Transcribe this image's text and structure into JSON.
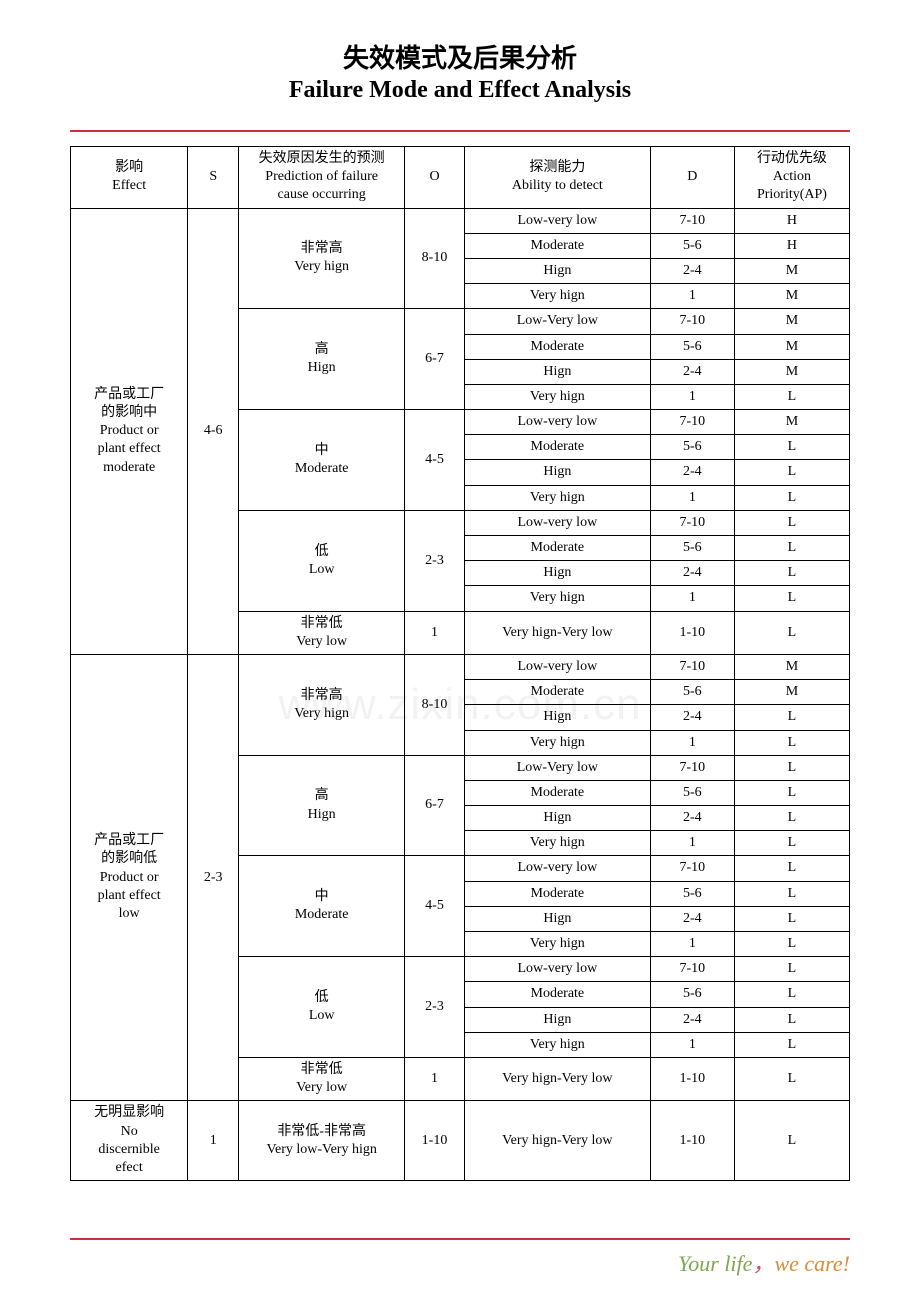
{
  "titles": {
    "cn": "失效模式及后果分析",
    "en": "Failure Mode and Effect Analysis"
  },
  "watermark": "www.zixin.com.cn",
  "footer": {
    "part1": "Your life",
    "comma": "，",
    "part2": "we care!"
  },
  "colors": {
    "rule": "#c8323a"
  },
  "headers": {
    "effect_cn": "影响",
    "effect_en": "Effect",
    "s": "S",
    "pred_cn": "失效原因发生的预测",
    "pred_en1": "Prediction of failure",
    "pred_en2": "cause occurring",
    "o": "O",
    "detect_cn": "探测能力",
    "detect_en": "Ability to detect",
    "d": "D",
    "ap_cn": "行动优先级",
    "ap_en1": "Action",
    "ap_en2": "Priority(AP)"
  },
  "groups": [
    {
      "effect_cn1": "产品或工厂",
      "effect_cn2": "的影响中",
      "effect_en1": "Product or",
      "effect_en2": "plant effect",
      "effect_en3": "moderate",
      "s": "4-6",
      "preds": [
        {
          "label_cn": "非常高",
          "label_en": "Very hign",
          "o": "8-10",
          "rows": [
            {
              "detect": "Low-very low",
              "d": "7-10",
              "ap": "H"
            },
            {
              "detect": "Moderate",
              "d": "5-6",
              "ap": "H"
            },
            {
              "detect": "Hign",
              "d": "2-4",
              "ap": "M"
            },
            {
              "detect": "Very hign",
              "d": "1",
              "ap": "M"
            }
          ]
        },
        {
          "label_cn": "高",
          "label_en": "Hign",
          "o": "6-7",
          "rows": [
            {
              "detect": "Low-Very low",
              "d": "7-10",
              "ap": "M"
            },
            {
              "detect": "Moderate",
              "d": "5-6",
              "ap": "M"
            },
            {
              "detect": "Hign",
              "d": "2-4",
              "ap": "M"
            },
            {
              "detect": "Very hign",
              "d": "1",
              "ap": "L"
            }
          ]
        },
        {
          "label_cn": "中",
          "label_en": "Moderate",
          "o": "4-5",
          "rows": [
            {
              "detect": "Low-very low",
              "d": "7-10",
              "ap": "M"
            },
            {
              "detect": "Moderate",
              "d": "5-6",
              "ap": "L"
            },
            {
              "detect": "Hign",
              "d": "2-4",
              "ap": "L"
            },
            {
              "detect": "Very hign",
              "d": "1",
              "ap": "L"
            }
          ]
        },
        {
          "label_cn": "低",
          "label_en": "Low",
          "o": "2-3",
          "rows": [
            {
              "detect": "Low-very low",
              "d": "7-10",
              "ap": "L"
            },
            {
              "detect": "Moderate",
              "d": "5-6",
              "ap": "L"
            },
            {
              "detect": "Hign",
              "d": "2-4",
              "ap": "L"
            },
            {
              "detect": "Very hign",
              "d": "1",
              "ap": "L"
            }
          ]
        },
        {
          "label_cn": "非常低",
          "label_en": "Very low",
          "o": "1",
          "rows": [
            {
              "detect": "Very hign-Very low",
              "d": "1-10",
              "ap": "L"
            }
          ]
        }
      ]
    },
    {
      "effect_cn1": "产品或工厂",
      "effect_cn2": "的影响低",
      "effect_en1": "Product or",
      "effect_en2": "plant effect",
      "effect_en3": "low",
      "s": "2-3",
      "preds": [
        {
          "label_cn": "非常高",
          "label_en": "Very hign",
          "o": "8-10",
          "rows": [
            {
              "detect": "Low-very low",
              "d": "7-10",
              "ap": "M"
            },
            {
              "detect": "Moderate",
              "d": "5-6",
              "ap": "M"
            },
            {
              "detect": "Hign",
              "d": "2-4",
              "ap": "L"
            },
            {
              "detect": "Very hign",
              "d": "1",
              "ap": "L"
            }
          ]
        },
        {
          "label_cn": "高",
          "label_en": "Hign",
          "o": "6-7",
          "rows": [
            {
              "detect": "Low-Very low",
              "d": "7-10",
              "ap": "L"
            },
            {
              "detect": "Moderate",
              "d": "5-6",
              "ap": "L"
            },
            {
              "detect": "Hign",
              "d": "2-4",
              "ap": "L"
            },
            {
              "detect": "Very hign",
              "d": "1",
              "ap": "L"
            }
          ]
        },
        {
          "label_cn": "中",
          "label_en": "Moderate",
          "o": "4-5",
          "rows": [
            {
              "detect": "Low-very low",
              "d": "7-10",
              "ap": "L"
            },
            {
              "detect": "Moderate",
              "d": "5-6",
              "ap": "L"
            },
            {
              "detect": "Hign",
              "d": "2-4",
              "ap": "L"
            },
            {
              "detect": "Very hign",
              "d": "1",
              "ap": "L"
            }
          ]
        },
        {
          "label_cn": "低",
          "label_en": "Low",
          "o": "2-3",
          "rows": [
            {
              "detect": "Low-very low",
              "d": "7-10",
              "ap": "L"
            },
            {
              "detect": "Moderate",
              "d": "5-6",
              "ap": "L"
            },
            {
              "detect": "Hign",
              "d": "2-4",
              "ap": "L"
            },
            {
              "detect": "Very hign",
              "d": "1",
              "ap": "L"
            }
          ]
        },
        {
          "label_cn": "非常低",
          "label_en": "Very low",
          "o": "1",
          "rows": [
            {
              "detect": "Very hign-Very low",
              "d": "1-10",
              "ap": "L"
            }
          ]
        }
      ]
    },
    {
      "effect_cn1": "无明显影响",
      "effect_en1": "No",
      "effect_en2": "discernible",
      "effect_en3": "efect",
      "s": "1",
      "preds": [
        {
          "label_cn": "非常低-非常高",
          "label_en": "Very low-Very hign",
          "o": "1-10",
          "rows": [
            {
              "detect": "Very hign-Very low",
              "d": "1-10",
              "ap": "L"
            }
          ]
        }
      ]
    }
  ]
}
